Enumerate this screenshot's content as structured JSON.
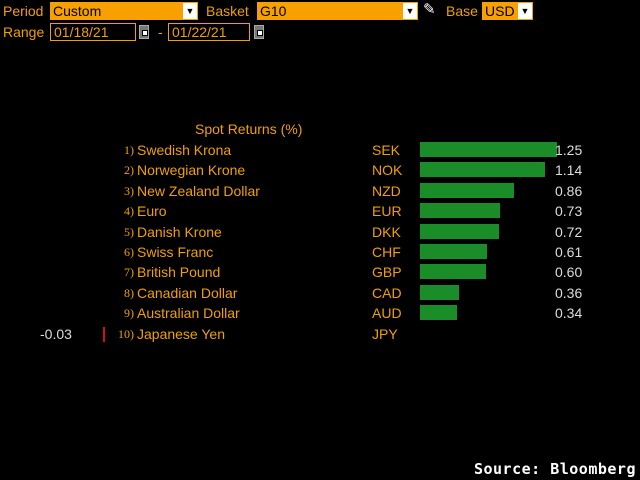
{
  "header": {
    "period_label": "Period",
    "period_value": "Custom",
    "basket_label": "Basket",
    "basket_value": "G10",
    "base_label": "Base",
    "base_value": "USD",
    "range_label": "Range",
    "start_date": "01/18/21",
    "range_separator": "-",
    "end_date": "01/22/21"
  },
  "chart_data": {
    "type": "bar",
    "orientation": "horizontal",
    "title": "Spot Returns (%)",
    "ranks": [
      "1)",
      "2)",
      "3)",
      "4)",
      "5)",
      "6)",
      "7)",
      "8)",
      "9)",
      "10)"
    ],
    "categories": [
      "Swedish Krona",
      "Norwegian Krone",
      "New Zealand Dollar",
      "Euro",
      "Danish Krone",
      "Swiss Franc",
      "British Pound",
      "Canadian Dollar",
      "Australian Dollar",
      "Japanese Yen"
    ],
    "codes": [
      "SEK",
      "NOK",
      "NZD",
      "EUR",
      "DKK",
      "CHF",
      "GBP",
      "CAD",
      "AUD",
      "JPY"
    ],
    "values": [
      1.25,
      1.14,
      0.86,
      0.73,
      0.72,
      0.61,
      0.6,
      0.36,
      0.34,
      -0.03
    ],
    "value_labels": [
      "1.25",
      "1.14",
      "0.86",
      "0.73",
      "0.72",
      "0.61",
      "0.60",
      "0.36",
      "0.34",
      "-0.03"
    ],
    "positive_color": "#1a8c28",
    "negative_color": "#d01020"
  },
  "footer": {
    "source": "Source: Bloomberg"
  }
}
